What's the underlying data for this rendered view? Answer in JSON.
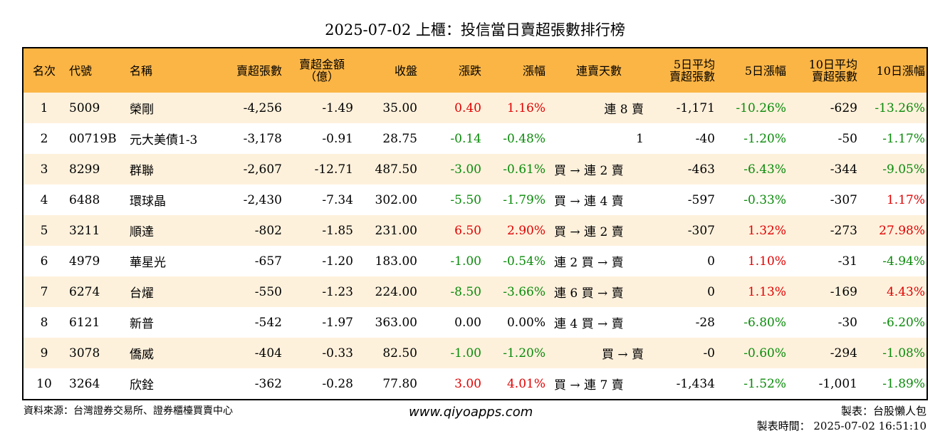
{
  "title": "2025-07-02 上櫃：投信當日賣超張數排行榜",
  "headers": [
    {
      "label": "名次",
      "align": "c"
    },
    {
      "label": "代號",
      "align": "l"
    },
    {
      "label": "名稱",
      "align": "l"
    },
    {
      "label": "賣超張數",
      "align": "r"
    },
    {
      "label": "賣超金額\n（億）",
      "align": "c"
    },
    {
      "label": "收盤",
      "align": "r"
    },
    {
      "label": "漲跌",
      "align": "r"
    },
    {
      "label": "漲幅",
      "align": "r"
    },
    {
      "label": "連賣天數",
      "align": "c"
    },
    {
      "label": "5日平均\n賣超張數",
      "align": "r"
    },
    {
      "label": "5日漲幅",
      "align": "r"
    },
    {
      "label": "10日平均\n賣超張數",
      "align": "r"
    },
    {
      "label": "10日漲幅",
      "align": "r"
    }
  ],
  "rows": [
    {
      "rank": "1",
      "code": "5009",
      "name": "榮剛",
      "sell_qty": "-4,256",
      "sell_amt": "-1.49",
      "close": "35.00",
      "chg": "0.40",
      "pct": "1.16%",
      "streak": "連 8 賣",
      "streak_align": "r",
      "avg5": "-1,171",
      "pct5": "-10.26%",
      "avg10": "-629",
      "pct10": "-13.26%"
    },
    {
      "rank": "2",
      "code": "00719B",
      "name": "元大美債1-3",
      "sell_qty": "-3,178",
      "sell_amt": "-0.91",
      "close": "28.75",
      "chg": "-0.14",
      "pct": "-0.48%",
      "streak": "1",
      "streak_align": "r",
      "avg5": "-40",
      "pct5": "-1.20%",
      "avg10": "-50",
      "pct10": "-1.17%"
    },
    {
      "rank": "3",
      "code": "8299",
      "name": "群聯",
      "sell_qty": "-2,607",
      "sell_amt": "-12.71",
      "close": "487.50",
      "chg": "-3.00",
      "pct": "-0.61%",
      "streak": "買 → 連 2 賣",
      "streak_align": "l",
      "avg5": "-463",
      "pct5": "-6.43%",
      "avg10": "-344",
      "pct10": "-9.05%"
    },
    {
      "rank": "4",
      "code": "6488",
      "name": "環球晶",
      "sell_qty": "-2,430",
      "sell_amt": "-7.34",
      "close": "302.00",
      "chg": "-5.50",
      "pct": "-1.79%",
      "streak": "買 → 連 4 賣",
      "streak_align": "l",
      "avg5": "-597",
      "pct5": "-0.33%",
      "avg10": "-307",
      "pct10": "1.17%"
    },
    {
      "rank": "5",
      "code": "3211",
      "name": "順達",
      "sell_qty": "-802",
      "sell_amt": "-1.85",
      "close": "231.00",
      "chg": "6.50",
      "pct": "2.90%",
      "streak": "買 → 連 2 賣",
      "streak_align": "l",
      "avg5": "-307",
      "pct5": "1.32%",
      "avg10": "-273",
      "pct10": "27.98%"
    },
    {
      "rank": "6",
      "code": "4979",
      "name": "華星光",
      "sell_qty": "-657",
      "sell_amt": "-1.20",
      "close": "183.00",
      "chg": "-1.00",
      "pct": "-0.54%",
      "streak": "連 2 買 → 賣",
      "streak_align": "l",
      "avg5": "0",
      "pct5": "1.10%",
      "avg10": "-31",
      "pct10": "-4.94%"
    },
    {
      "rank": "7",
      "code": "6274",
      "name": "台燿",
      "sell_qty": "-550",
      "sell_amt": "-1.23",
      "close": "224.00",
      "chg": "-8.50",
      "pct": "-3.66%",
      "streak": "連 6 買 → 賣",
      "streak_align": "l",
      "avg5": "0",
      "pct5": "1.13%",
      "avg10": "-169",
      "pct10": "4.43%"
    },
    {
      "rank": "8",
      "code": "6121",
      "name": "新普",
      "sell_qty": "-542",
      "sell_amt": "-1.97",
      "close": "363.00",
      "chg": "0.00",
      "pct": "0.00%",
      "streak": "連 4 買 → 賣",
      "streak_align": "l",
      "avg5": "-28",
      "pct5": "-6.80%",
      "avg10": "-30",
      "pct10": "-6.20%"
    },
    {
      "rank": "9",
      "code": "3078",
      "name": "僑威",
      "sell_qty": "-404",
      "sell_amt": "-0.33",
      "close": "82.50",
      "chg": "-1.00",
      "pct": "-1.20%",
      "streak": "買 → 賣",
      "streak_align": "r",
      "avg5": "-0",
      "pct5": "-0.60%",
      "avg10": "-294",
      "pct10": "-1.08%"
    },
    {
      "rank": "10",
      "code": "3264",
      "name": "欣銓",
      "sell_qty": "-362",
      "sell_amt": "-0.28",
      "close": "77.80",
      "chg": "3.00",
      "pct": "4.01%",
      "streak": "買 → 連 7 賣",
      "streak_align": "l",
      "avg5": "-1,434",
      "pct5": "-1.52%",
      "avg10": "-1,001",
      "pct10": "-1.89%"
    }
  ],
  "footer": {
    "source": "資料來源：台灣證券交易所、證券櫃檯買賣中心",
    "website": "www.qiyoapps.com",
    "maker": "製表：台股懶人包",
    "made_time": "製表時間： 2025-07-02 16:51:10"
  },
  "colors": {
    "header_bg": "#fbb545",
    "odd_row_bg": "#fef1dc",
    "positive": "#e00000",
    "negative": "#0a8a0a"
  }
}
